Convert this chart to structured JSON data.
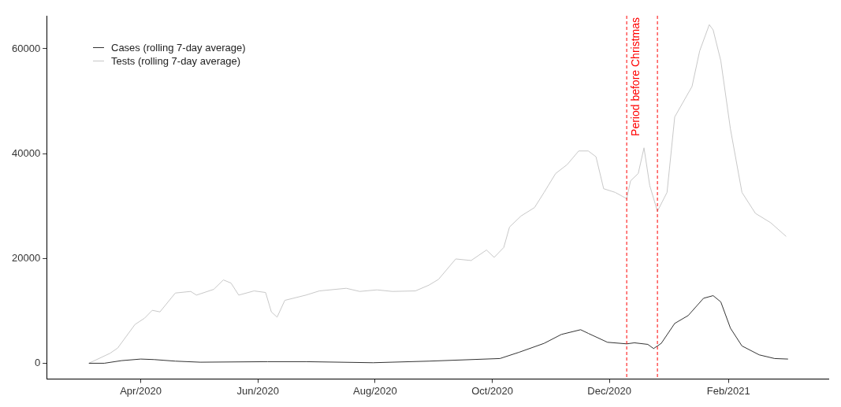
{
  "chart_data": {
    "type": "line",
    "series": [
      {
        "name": "Cases (rolling 7-day average)",
        "color": "#333333",
        "x": [
          "2020-03-05",
          "2020-03-13",
          "2020-03-22",
          "2020-04-01",
          "2020-04-08",
          "2020-04-19",
          "2020-05-02",
          "2020-06-06",
          "2020-06-26",
          "2020-07-31",
          "2020-08-29",
          "2020-10-05",
          "2020-10-15",
          "2020-10-28",
          "2020-11-06",
          "2020-11-16",
          "2020-11-20",
          "2020-11-30",
          "2020-12-10",
          "2020-12-14",
          "2020-12-21",
          "2020-12-24",
          "2020-12-28",
          "2021-01-04",
          "2021-01-11",
          "2021-01-19",
          "2021-01-24",
          "2021-01-28",
          "2021-02-02",
          "2021-02-08",
          "2021-02-17",
          "2021-02-25",
          "2021-03-04"
        ],
        "values": [
          0,
          0,
          500,
          800,
          700,
          400,
          200,
          300,
          300,
          100,
          400,
          900,
          2100,
          3800,
          5500,
          6400,
          5700,
          4000,
          3700,
          3900,
          3600,
          2800,
          3800,
          7600,
          9100,
          12400,
          12900,
          11700,
          6700,
          3300,
          1600,
          900,
          800
        ]
      },
      {
        "name": "Tests (rolling 7-day average)",
        "color": "#c8c8c8",
        "x": [
          "2020-03-05",
          "2020-03-16",
          "2020-03-20",
          "2020-03-29",
          "2020-04-03",
          "2020-04-07",
          "2020-04-11",
          "2020-04-19",
          "2020-04-27",
          "2020-04-30",
          "2020-05-09",
          "2020-05-14",
          "2020-05-18",
          "2020-05-22",
          "2020-05-30",
          "2020-06-05",
          "2020-06-08",
          "2020-06-11",
          "2020-06-15",
          "2020-06-26",
          "2020-07-03",
          "2020-07-17",
          "2020-07-24",
          "2020-08-02",
          "2020-08-10",
          "2020-08-22",
          "2020-08-29",
          "2020-09-03",
          "2020-09-12",
          "2020-09-20",
          "2020-09-28",
          "2020-10-02",
          "2020-10-07",
          "2020-10-10",
          "2020-10-16",
          "2020-10-23",
          "2020-10-28",
          "2020-11-03",
          "2020-11-09",
          "2020-11-15",
          "2020-11-20",
          "2020-11-24",
          "2020-11-28",
          "2020-12-04",
          "2020-12-10",
          "2020-12-12",
          "2020-12-16",
          "2020-12-19",
          "2020-12-22",
          "2020-12-26",
          "2020-12-31",
          "2021-01-04",
          "2021-01-13",
          "2021-01-17",
          "2021-01-22",
          "2021-01-24",
          "2021-01-28",
          "2021-02-02",
          "2021-02-08",
          "2021-02-15",
          "2021-02-23",
          "2021-03-03"
        ],
        "values": [
          0,
          1900,
          2900,
          7400,
          8600,
          10100,
          9800,
          13400,
          13700,
          13000,
          14100,
          15900,
          15300,
          13000,
          13800,
          13500,
          9800,
          8800,
          12000,
          13000,
          13800,
          14300,
          13700,
          14000,
          13700,
          13800,
          14900,
          16000,
          19900,
          19600,
          21600,
          20200,
          22100,
          26000,
          28100,
          29700,
          32600,
          36200,
          37900,
          40500,
          40500,
          39400,
          33300,
          32600,
          31400,
          34800,
          36200,
          41100,
          33900,
          29000,
          32600,
          47000,
          52800,
          59600,
          64600,
          63600,
          57700,
          44700,
          32600,
          28600,
          26800,
          24200
        ]
      }
    ],
    "xlim": [
      "2020-02-12",
      "2021-03-25"
    ],
    "xticks": [
      {
        "value": "2020-04-01",
        "label": "Apr/2020"
      },
      {
        "value": "2020-06-01",
        "label": "Jun/2020"
      },
      {
        "value": "2020-08-01",
        "label": "Aug/2020"
      },
      {
        "value": "2020-10-01",
        "label": "Oct/2020"
      },
      {
        "value": "2020-12-01",
        "label": "Dec/2020"
      },
      {
        "value": "2021-02-01",
        "label": "Feb/2021"
      }
    ],
    "ylim": [
      -3000,
      66300
    ],
    "yticks": [
      0,
      20000,
      40000,
      60000
    ],
    "ref_lines": [
      {
        "axis": "x",
        "value": "2020-12-10",
        "label": "Period before Christmas",
        "color": "#ff0000",
        "line_style": "dashed"
      },
      {
        "axis": "x",
        "value": "2020-12-26",
        "label": null,
        "color": "#ff0000",
        "line_style": "dashed"
      }
    ],
    "grid": false,
    "legend": "top left",
    "marker": "none",
    "line_style": "solid"
  }
}
